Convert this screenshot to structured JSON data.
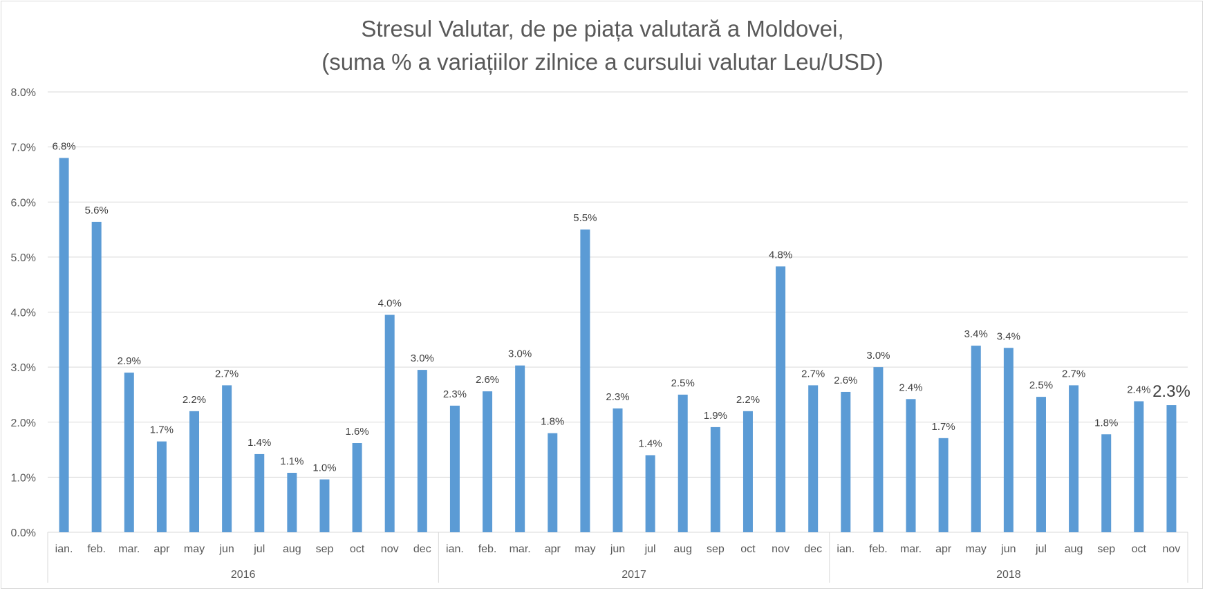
{
  "chart_data": {
    "type": "bar",
    "title": "Stresul Valutar, de pe piața valutară a Moldovei,",
    "subtitle": "(suma % a variațiilor zilnice a cursului valutar Leu/USD)",
    "xlabel": "",
    "ylabel": "",
    "ylim": [
      0,
      8
    ],
    "y_ticks": [
      "0.0%",
      "1.0%",
      "2.0%",
      "3.0%",
      "4.0%",
      "5.0%",
      "6.0%",
      "7.0%",
      "8.0%"
    ],
    "grid": true,
    "legend": "none",
    "bar_color": "#5B9BD5",
    "groups": [
      {
        "label": "2016",
        "count": 12
      },
      {
        "label": "2017",
        "count": 12
      },
      {
        "label": "2018",
        "count": 11
      }
    ],
    "categories": [
      "ian.",
      "feb.",
      "mar.",
      "apr",
      "may",
      "jun",
      "jul",
      "aug",
      "sep",
      "oct",
      "nov",
      "dec",
      "ian.",
      "feb.",
      "mar.",
      "apr",
      "may",
      "jun",
      "jul",
      "aug",
      "sep",
      "oct",
      "nov",
      "dec",
      "ian.",
      "feb.",
      "mar.",
      "apr",
      "may",
      "jun",
      "jul",
      "aug",
      "sep",
      "oct",
      "nov"
    ],
    "values": [
      6.8,
      5.64,
      2.9,
      1.65,
      2.2,
      2.67,
      1.42,
      1.08,
      0.96,
      1.62,
      3.95,
      2.95,
      2.3,
      2.56,
      3.03,
      1.8,
      5.5,
      2.25,
      1.4,
      2.5,
      1.91,
      2.2,
      4.83,
      2.67,
      2.55,
      3.0,
      2.42,
      1.71,
      3.39,
      3.35,
      2.46,
      2.67,
      1.78,
      2.38,
      2.31
    ],
    "data_labels": [
      "6.8%",
      "5.6%",
      "2.9%",
      "1.7%",
      "2.2%",
      "2.7%",
      "1.4%",
      "1.1%",
      "1.0%",
      "1.6%",
      "4.0%",
      "3.0%",
      "2.3%",
      "2.6%",
      "3.0%",
      "1.8%",
      "5.5%",
      "2.3%",
      "1.4%",
      "2.5%",
      "1.9%",
      "2.2%",
      "4.8%",
      "2.7%",
      "2.6%",
      "3.0%",
      "2.4%",
      "1.7%",
      "3.4%",
      "3.4%",
      "2.5%",
      "2.7%",
      "1.8%",
      "2.4%",
      "2.3%"
    ]
  }
}
